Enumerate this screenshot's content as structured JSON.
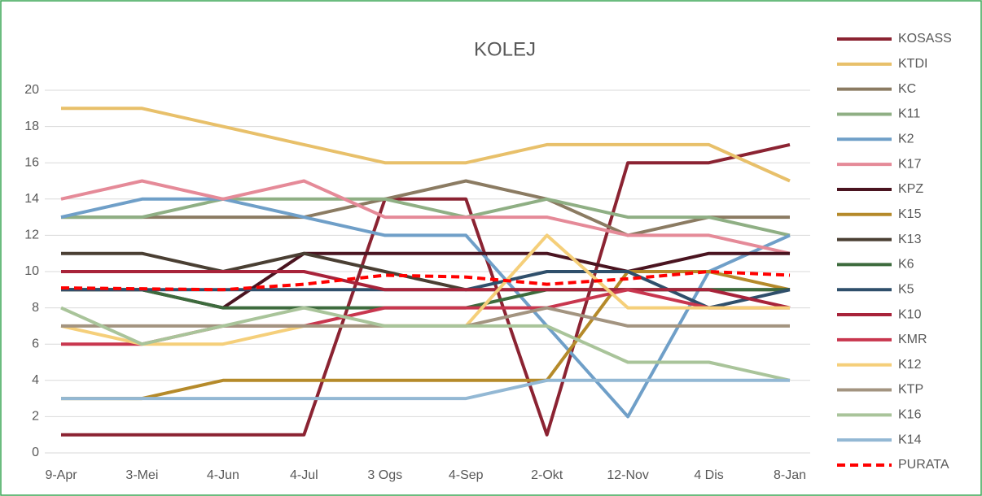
{
  "chart_data": {
    "type": "line",
    "title": "KOLEJ",
    "categories": [
      "9-Apr",
      "3-Mei",
      "4-Jun",
      "4-Jul",
      "3 Ogs",
      "4-Sep",
      "2-Okt",
      "12-Nov",
      "4 Dis",
      "8-Jan"
    ],
    "ylim": [
      0,
      20
    ],
    "yticks": [
      0,
      2,
      4,
      6,
      8,
      10,
      12,
      14,
      16,
      18,
      20
    ],
    "grid": true,
    "legend": "right",
    "series": [
      {
        "name": "KOSASS",
        "color": "#8b2332",
        "values": [
          1,
          1,
          1,
          1,
          14,
          14,
          1,
          16,
          16,
          17
        ]
      },
      {
        "name": "KTDI",
        "color": "#e8c06a",
        "values": [
          19,
          19,
          18,
          17,
          16,
          16,
          17,
          17,
          17,
          15
        ]
      },
      {
        "name": "KC",
        "color": "#8b7b62",
        "values": [
          13,
          13,
          13,
          13,
          14,
          15,
          14,
          12,
          13,
          13
        ]
      },
      {
        "name": "K11",
        "color": "#8faf84",
        "values": [
          13,
          13,
          14,
          14,
          14,
          13,
          14,
          13,
          13,
          12
        ]
      },
      {
        "name": "K2",
        "color": "#6f9fc8",
        "values": [
          13,
          14,
          14,
          13,
          12,
          12,
          7,
          2,
          10,
          12
        ]
      },
      {
        "name": "K17",
        "color": "#e58a98",
        "values": [
          14,
          15,
          14,
          15,
          13,
          13,
          13,
          12,
          12,
          11
        ]
      },
      {
        "name": "KPZ",
        "color": "#4a1420",
        "values": [
          9,
          9,
          8,
          11,
          11,
          11,
          11,
          10,
          11,
          11
        ]
      },
      {
        "name": "K15",
        "color": "#b58a2a",
        "values": [
          3,
          3,
          4,
          4,
          4,
          4,
          4,
          10,
          10,
          9
        ]
      },
      {
        "name": "K13",
        "color": "#4a3f33",
        "values": [
          11,
          11,
          10,
          11,
          10,
          9,
          9,
          9,
          9,
          9
        ]
      },
      {
        "name": "K6",
        "color": "#3d6b3d",
        "values": [
          9,
          9,
          8,
          8,
          8,
          8,
          9,
          9,
          9,
          9
        ]
      },
      {
        "name": "K5",
        "color": "#2f4f6b",
        "values": [
          9,
          9,
          9,
          9,
          9,
          9,
          10,
          10,
          8,
          9
        ]
      },
      {
        "name": "K10",
        "color": "#a8233a",
        "values": [
          10,
          10,
          10,
          10,
          9,
          9,
          9,
          9,
          9,
          8
        ]
      },
      {
        "name": "KMR",
        "color": "#c8364e",
        "values": [
          6,
          6,
          7,
          7,
          8,
          8,
          8,
          9,
          8,
          8
        ]
      },
      {
        "name": "K12",
        "color": "#f5cf7a",
        "values": [
          7,
          6,
          6,
          7,
          7,
          7,
          12,
          8,
          8,
          8
        ]
      },
      {
        "name": "KTP",
        "color": "#a39480",
        "values": [
          7,
          7,
          7,
          7,
          7,
          7,
          8,
          7,
          7,
          7
        ]
      },
      {
        "name": "K16",
        "color": "#a9c49a",
        "values": [
          8,
          6,
          7,
          8,
          7,
          7,
          7,
          5,
          5,
          4
        ]
      },
      {
        "name": "K14",
        "color": "#93b8d4",
        "values": [
          3,
          3,
          3,
          3,
          3,
          3,
          4,
          4,
          4,
          4
        ]
      },
      {
        "name": "PURATA",
        "color": "#ff0000",
        "dashed": true,
        "values": [
          9.1,
          9.05,
          9,
          9.3,
          9.8,
          9.7,
          9.3,
          9.6,
          10,
          9.8
        ]
      }
    ]
  }
}
